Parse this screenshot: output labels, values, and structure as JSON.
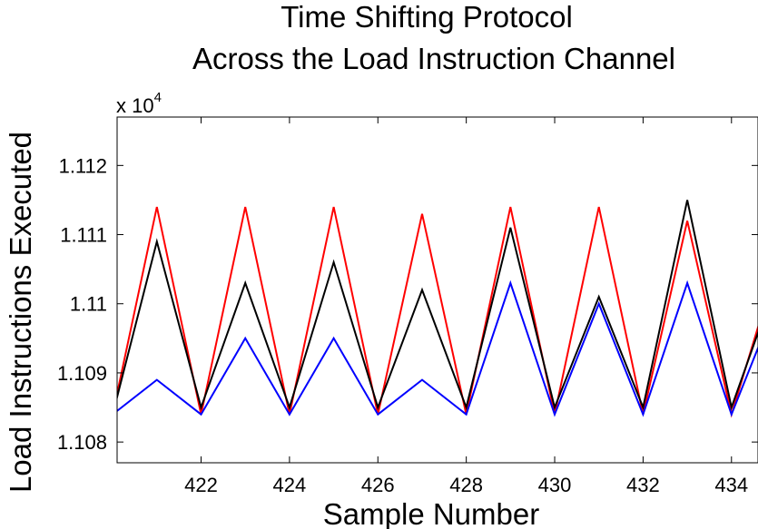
{
  "chart_data": {
    "type": "line",
    "title": [
      "Time Shifting Protocol",
      "Across the Load Instruction Channel"
    ],
    "xlabel": "Sample Number",
    "ylabel": "Load Instructions Executed",
    "y_multiplier": "x 10",
    "y_multiplier_exponent": "4",
    "xlim": [
      420.1,
      434.6
    ],
    "ylim": [
      1.1077,
      1.1127
    ],
    "x_ticks": [
      422,
      424,
      426,
      428,
      430,
      432,
      434
    ],
    "x_tick_labels": [
      "422",
      "424",
      "426",
      "428",
      "430",
      "432",
      "434"
    ],
    "y_ticks": [
      1.108,
      1.109,
      1.11,
      1.111,
      1.112
    ],
    "y_tick_labels": [
      "1.108",
      "1.109",
      "1.11",
      "1.111",
      "1.112"
    ],
    "grid": false,
    "series": [
      {
        "color": "#ff0000",
        "x": [
          420,
          421,
          422,
          423,
          424,
          425,
          426,
          427,
          428,
          429,
          430,
          431,
          432,
          433,
          434,
          435
        ],
        "values": [
          1.1084,
          1.1114,
          1.1084,
          1.1114,
          1.1084,
          1.1114,
          1.1084,
          1.1113,
          1.1084,
          1.1114,
          1.1084,
          1.1114,
          1.1084,
          1.1112,
          1.1084,
          1.1105
        ]
      },
      {
        "color": "#000000",
        "x": [
          420,
          421,
          422,
          423,
          424,
          425,
          426,
          427,
          428,
          429,
          430,
          431,
          432,
          433,
          434,
          435
        ],
        "values": [
          1.1084,
          1.1109,
          1.1085,
          1.1103,
          1.1085,
          1.1106,
          1.1085,
          1.1102,
          1.1085,
          1.1111,
          1.1085,
          1.1101,
          1.1085,
          1.1115,
          1.1085,
          1.1103
        ]
      },
      {
        "color": "#0000ff",
        "x": [
          420,
          421,
          422,
          423,
          424,
          425,
          426,
          427,
          428,
          429,
          430,
          431,
          432,
          433,
          434,
          435
        ],
        "values": [
          1.1084,
          1.1089,
          1.1084,
          1.1095,
          1.1084,
          1.1095,
          1.1084,
          1.1089,
          1.1084,
          1.1103,
          1.1084,
          1.11,
          1.1084,
          1.1103,
          1.1084,
          1.11
        ]
      }
    ]
  }
}
